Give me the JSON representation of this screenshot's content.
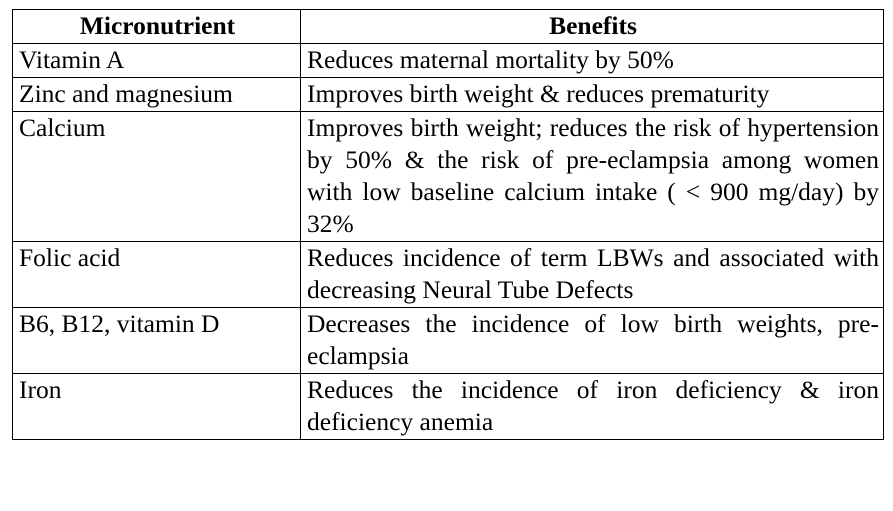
{
  "table": {
    "headers": {
      "micronutrient": "Micronutrient",
      "benefits": "Benefits"
    },
    "rows": [
      {
        "micronutrient": "Vitamin A",
        "benefits": "Reduces maternal mortality by 50%"
      },
      {
        "micronutrient": "Zinc and magnesium",
        "benefits": "Improves birth weight & reduces prematurity"
      },
      {
        "micronutrient": "Calcium",
        "benefits": "Improves birth weight; reduces the risk of hypertension by 50% & the risk of pre-eclampsia among women with low baseline calcium intake ( < 900 mg/day) by 32%"
      },
      {
        "micronutrient": "Folic acid",
        "benefits": "Reduces incidence of term LBWs and associated with decreasing Neural Tube Defects"
      },
      {
        "micronutrient": "B6, B12, vitamin D",
        "benefits": "Decreases the incidence of low birth weights, pre-eclampsia"
      },
      {
        "micronutrient": "Iron",
        "benefits": "Reduces the incidence of iron deficiency & iron deficiency anemia"
      }
    ]
  }
}
